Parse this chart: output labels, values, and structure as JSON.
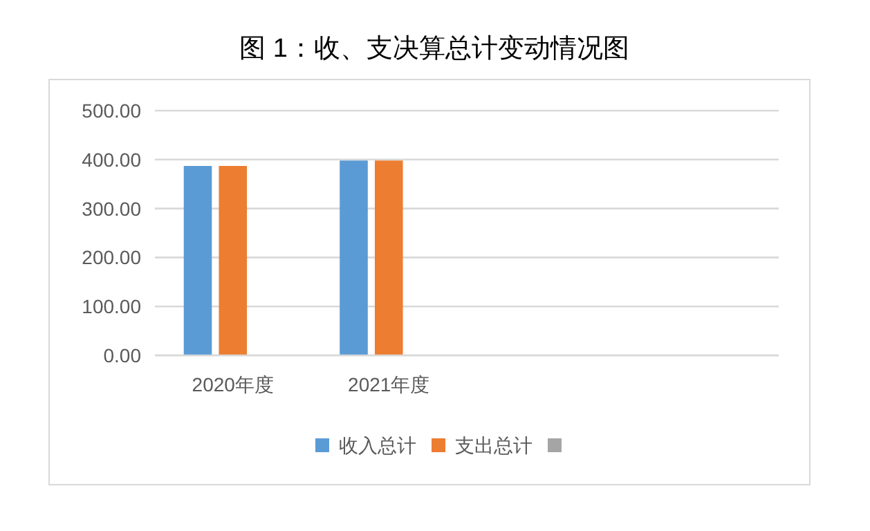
{
  "chart_data": {
    "type": "bar",
    "title": "图 1：收、支决算总计变动情况图",
    "categories": [
      "2020年度",
      "2021年度",
      null,
      null
    ],
    "series": [
      {
        "name": "收入总计",
        "color": "#5b9bd5",
        "values": [
          387,
          398,
          null,
          null
        ]
      },
      {
        "name": "支出总计",
        "color": "#ed7d31",
        "values": [
          387,
          398,
          null,
          null
        ]
      },
      {
        "color": "#a5a5a5",
        "values": [
          null,
          null,
          null,
          null
        ]
      }
    ],
    "ylim": [
      0,
      500
    ],
    "yticks": [
      {
        "value": 0,
        "label": "0.00"
      },
      {
        "value": 100,
        "label": "100.00"
      },
      {
        "value": 200,
        "label": "200.00"
      },
      {
        "value": 300,
        "label": "300.00"
      },
      {
        "value": 400,
        "label": "400.00"
      },
      {
        "value": 500,
        "label": "500.00"
      }
    ],
    "grid": "y",
    "legend": "bottom"
  }
}
